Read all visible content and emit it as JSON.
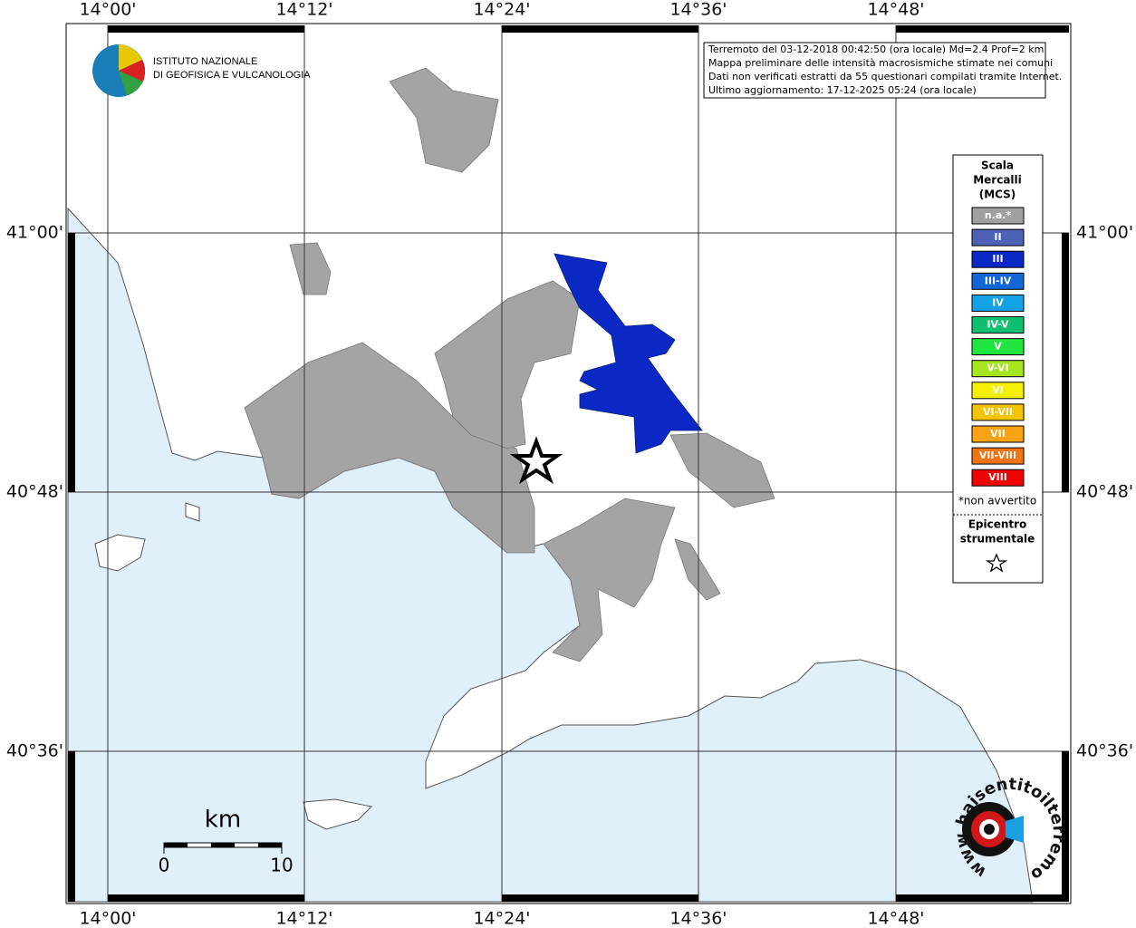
{
  "frame": {
    "lon_ticks": [
      "14°00'",
      "14°12'",
      "14°24'",
      "14°36'",
      "14°48'"
    ],
    "lat_ticks": [
      "41°00'",
      "40°48'",
      "40°36'"
    ]
  },
  "logo": {
    "line1": "ISTITUTO NAZIONALE",
    "line2": "DI GEOFISICA E VULCANOLOGIA"
  },
  "info": {
    "lines": [
      "Terremoto del 03-12-2018 00:42:50 (ora locale) Md=2.4 Prof=2 km",
      "Mappa preliminare delle intensità macrosismiche stimate nei comuni",
      "Dati non verificati estratti da 55 questionari compilati tramite Internet.",
      "Ultimo aggiornamento: 17-12-2025 05:24 (ora locale)"
    ]
  },
  "legend": {
    "title": [
      "Scala",
      "Mercalli",
      "(MCS)"
    ],
    "items": [
      {
        "label": "n.a.*",
        "color": "#a0a0a0"
      },
      {
        "label": "II",
        "color": "#4d62b4"
      },
      {
        "label": "III",
        "color": "#0a28c4"
      },
      {
        "label": "III-IV",
        "color": "#1266d6"
      },
      {
        "label": "IV",
        "color": "#14a2e6"
      },
      {
        "label": "IV-V",
        "color": "#10c070"
      },
      {
        "label": "V",
        "color": "#22e640"
      },
      {
        "label": "V-VI",
        "color": "#a6e61e"
      },
      {
        "label": "VI",
        "color": "#f4f000"
      },
      {
        "label": "VI-VII",
        "color": "#f4c400"
      },
      {
        "label": "VII",
        "color": "#f8a214"
      },
      {
        "label": "VII-VIII",
        "color": "#f07414"
      },
      {
        "label": "VIII",
        "color": "#f00000"
      }
    ],
    "note": "*non avvertito",
    "epicenter": [
      "Epicentro",
      "strumentale"
    ]
  },
  "scale_bar": {
    "unit": "km",
    "labels": [
      "0",
      "10"
    ]
  },
  "site_logo": {
    "text": "www.haisentitoilterremoto.it"
  }
}
